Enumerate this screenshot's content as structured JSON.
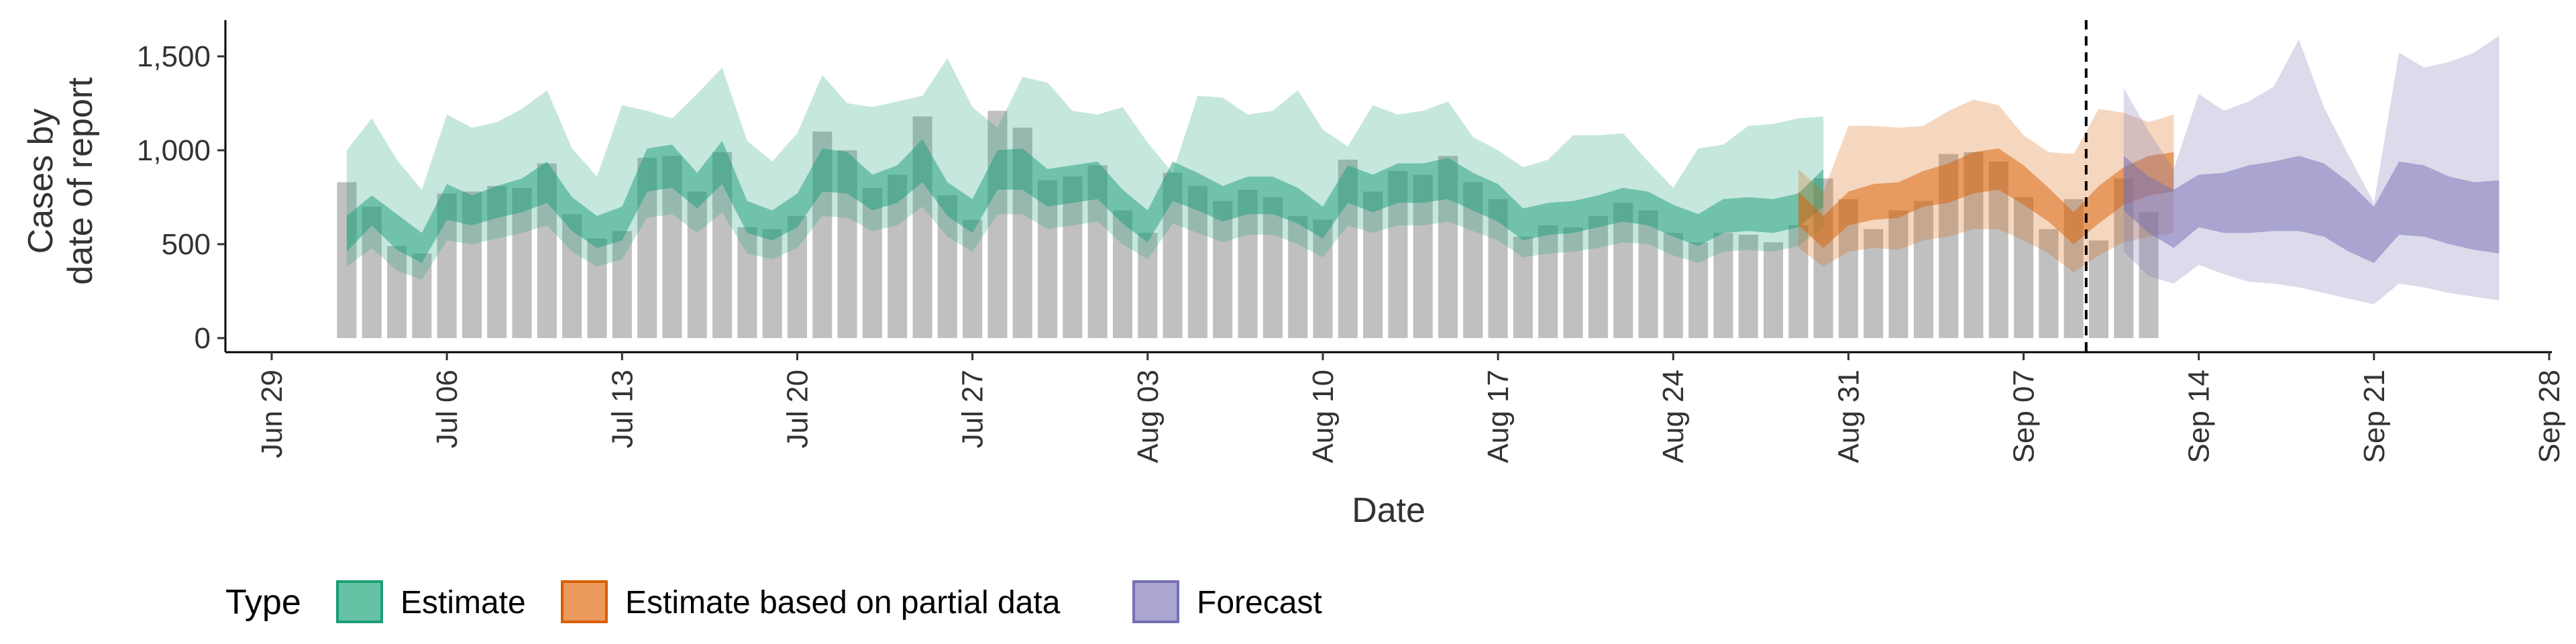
{
  "chart_data": {
    "type": "area",
    "xlabel": "Date",
    "ylabel_lines": [
      "Cases by",
      "date of report"
    ],
    "x_ticks": [
      "Jun 29",
      "Jul 06",
      "Jul 13",
      "Jul 20",
      "Jul 27",
      "Aug 03",
      "Aug 10",
      "Aug 17",
      "Aug 24",
      "Aug 31",
      "Sep 07",
      "Sep 14",
      "Sep 21",
      "Sep 28"
    ],
    "x_range": [
      "2020-06-29",
      "2020-09-28"
    ],
    "y_ticks": [
      "0",
      "500",
      "1,000",
      "1,500"
    ],
    "y_tick_values": [
      0,
      500,
      1000,
      1500
    ],
    "ylim": [
      -50,
      1680
    ],
    "forecast_cutoff_date": "2020-09-10",
    "legend": {
      "title": "Type",
      "position": "bottom",
      "items": [
        {
          "label": "Estimate",
          "fill": "#66c2a5",
          "stroke": "#1b9e77"
        },
        {
          "label": "Estimate based on partial data",
          "fill": "#ec9a5c",
          "stroke": "#d95f02"
        },
        {
          "label": "Forecast",
          "fill": "#aaa6d1",
          "stroke": "#7570b3"
        }
      ]
    },
    "colors": {
      "bars": "#bdbdbd",
      "estimate": "#1b9e77",
      "partial": "#d95f02",
      "forecast": "#7570b3",
      "cutoff_line": "#000000"
    },
    "reported_cases": {
      "start_date": "2020-07-02",
      "values": [
        830,
        700,
        490,
        450,
        770,
        780,
        810,
        800,
        930,
        660,
        530,
        570,
        960,
        970,
        780,
        990,
        590,
        580,
        650,
        1100,
        1000,
        800,
        870,
        1180,
        760,
        630,
        1210,
        1120,
        840,
        860,
        920,
        680,
        560,
        880,
        810,
        730,
        790,
        750,
        650,
        630,
        950,
        780,
        890,
        870,
        970,
        830,
        740,
        540,
        600,
        590,
        650,
        720,
        680,
        560,
        510,
        560,
        550,
        510,
        600,
        850,
        740,
        580,
        680,
        730,
        980,
        990,
        940,
        750,
        580,
        740,
        520,
        850,
        670
      ]
    },
    "series": [
      {
        "name": "Estimate",
        "start_date": "2020-07-02",
        "median": [
          560,
          680,
          570,
          480,
          720,
          680,
          720,
          760,
          830,
          660,
          560,
          610,
          900,
          920,
          780,
          940,
          640,
          600,
          680,
          910,
          880,
          780,
          820,
          950,
          740,
          650,
          900,
          900,
          800,
          820,
          840,
          700,
          590,
          830,
          780,
          720,
          760,
          760,
          700,
          610,
          820,
          770,
          820,
          820,
          840,
          780,
          720,
          600,
          630,
          640,
          670,
          700,
          680,
          620,
          570,
          640,
          650,
          640,
          670,
          790
        ],
        "inner_lo": [
          460,
          600,
          470,
          400,
          630,
          600,
          640,
          670,
          720,
          570,
          480,
          520,
          780,
          800,
          690,
          820,
          560,
          520,
          590,
          780,
          770,
          680,
          720,
          830,
          650,
          560,
          790,
          790,
          700,
          720,
          740,
          610,
          510,
          730,
          680,
          620,
          660,
          660,
          610,
          530,
          720,
          670,
          720,
          720,
          740,
          680,
          620,
          520,
          550,
          560,
          590,
          620,
          600,
          540,
          490,
          560,
          570,
          560,
          590,
          700
        ],
        "inner_hi": [
          650,
          760,
          660,
          560,
          820,
          760,
          810,
          850,
          940,
          750,
          650,
          700,
          1010,
          1030,
          880,
          1050,
          730,
          680,
          770,
          1010,
          990,
          870,
          920,
          1060,
          830,
          740,
          1000,
          1010,
          900,
          920,
          940,
          790,
          680,
          940,
          880,
          810,
          860,
          860,
          800,
          700,
          920,
          870,
          930,
          930,
          960,
          880,
          820,
          690,
          720,
          730,
          760,
          800,
          780,
          710,
          660,
          740,
          750,
          740,
          770,
          900
        ],
        "outer_lo": [
          380,
          480,
          360,
          310,
          520,
          500,
          530,
          560,
          600,
          460,
          380,
          420,
          640,
          660,
          560,
          670,
          450,
          420,
          480,
          650,
          640,
          570,
          600,
          700,
          540,
          460,
          660,
          660,
          580,
          600,
          620,
          500,
          420,
          610,
          560,
          510,
          550,
          550,
          500,
          430,
          600,
          560,
          600,
          600,
          620,
          570,
          520,
          430,
          450,
          460,
          480,
          510,
          500,
          440,
          400,
          460,
          470,
          460,
          490,
          590
        ],
        "outer_hi": [
          1000,
          1170,
          950,
          790,
          1190,
          1120,
          1150,
          1220,
          1320,
          1010,
          860,
          1240,
          1210,
          1170,
          1300,
          1440,
          1050,
          940,
          1090,
          1400,
          1250,
          1230,
          1260,
          1290,
          1490,
          1230,
          1120,
          1390,
          1360,
          1210,
          1190,
          1230,
          1040,
          880,
          1290,
          1280,
          1190,
          1210,
          1320,
          1110,
          1020,
          1240,
          1190,
          1210,
          1260,
          1070,
          1000,
          910,
          950,
          1080,
          1080,
          1090,
          940,
          800,
          1010,
          1030,
          1130,
          1140,
          1170,
          1180
        ]
      },
      {
        "name": "Estimate based on partial data",
        "start_date": "2020-08-29",
        "median": [
          700,
          570,
          700,
          730,
          740,
          800,
          830,
          880,
          910,
          820,
          720,
          590,
          720,
          820,
          870,
          890
        ],
        "inner_lo": [
          600,
          480,
          600,
          630,
          640,
          700,
          720,
          770,
          790,
          710,
          620,
          500,
          610,
          710,
          760,
          780
        ],
        "inner_hi": [
          780,
          650,
          780,
          820,
          830,
          890,
          930,
          990,
          1010,
          920,
          800,
          670,
          810,
          910,
          970,
          990
        ],
        "outer_lo": [
          480,
          380,
          460,
          480,
          470,
          520,
          540,
          580,
          580,
          520,
          450,
          350,
          440,
          510,
          540,
          560
        ],
        "outer_hi": [
          900,
          780,
          1130,
          1130,
          1120,
          1130,
          1210,
          1270,
          1240,
          1080,
          990,
          980,
          1220,
          1200,
          1150,
          1190
        ]
      },
      {
        "name": "Forecast",
        "start_date": "2020-09-11",
        "median": [
          820,
          720,
          630,
          730,
          740,
          760,
          780,
          800,
          760,
          660,
          550,
          760,
          740,
          680,
          650,
          640
        ],
        "inner_lo": [
          680,
          560,
          480,
          590,
          560,
          560,
          570,
          570,
          540,
          460,
          400,
          550,
          540,
          500,
          470,
          450
        ],
        "inner_hi": [
          970,
          860,
          790,
          870,
          880,
          920,
          940,
          970,
          930,
          830,
          700,
          940,
          920,
          860,
          830,
          840
        ],
        "outer_lo": [
          460,
          330,
          290,
          390,
          340,
          300,
          290,
          270,
          240,
          210,
          180,
          290,
          270,
          240,
          220,
          200
        ],
        "outer_hi": [
          1330,
          1100,
          900,
          1300,
          1210,
          1260,
          1340,
          1590,
          1230,
          970,
          720,
          1520,
          1440,
          1470,
          1520,
          1610
        ]
      }
    ]
  }
}
